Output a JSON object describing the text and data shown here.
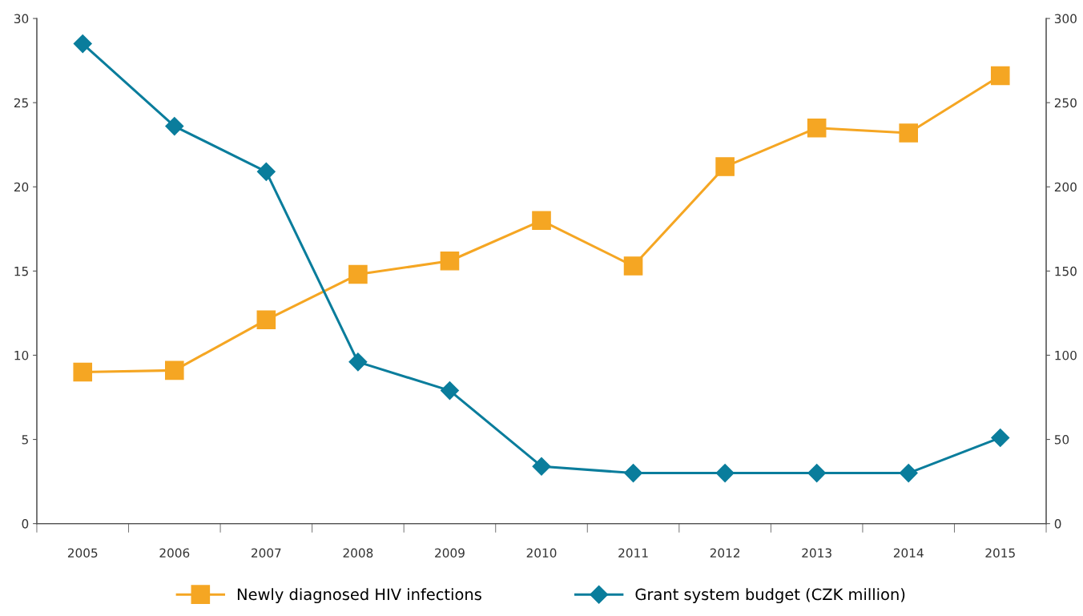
{
  "chart_data": {
    "type": "line",
    "categories": [
      "2005",
      "2006",
      "2007",
      "2008",
      "2009",
      "2010",
      "2011",
      "2012",
      "2013",
      "2014",
      "2015"
    ],
    "series": [
      {
        "name": "Newly diagnosed HIV infections",
        "color": "#f5a623",
        "marker": "square",
        "values": [
          9.0,
          9.1,
          12.1,
          14.8,
          15.6,
          18.0,
          15.3,
          21.2,
          23.5,
          23.2,
          26.6
        ]
      },
      {
        "name": "Grant system budget (CZK million)",
        "color": "#0a7d9c",
        "marker": "diamond",
        "axis": "y2",
        "values": [
          285,
          236,
          209,
          96,
          79,
          34,
          30,
          30,
          30,
          30,
          51
        ]
      }
    ],
    "ylim": [
      0,
      30
    ],
    "yticks": [
      0,
      5,
      10,
      15,
      20,
      25,
      30
    ],
    "y2lim": [
      0,
      300
    ],
    "y2ticks": [
      0,
      50,
      100,
      150,
      200,
      250,
      300
    ],
    "grid": false,
    "legend": "bottom",
    "line_style": "solid"
  }
}
